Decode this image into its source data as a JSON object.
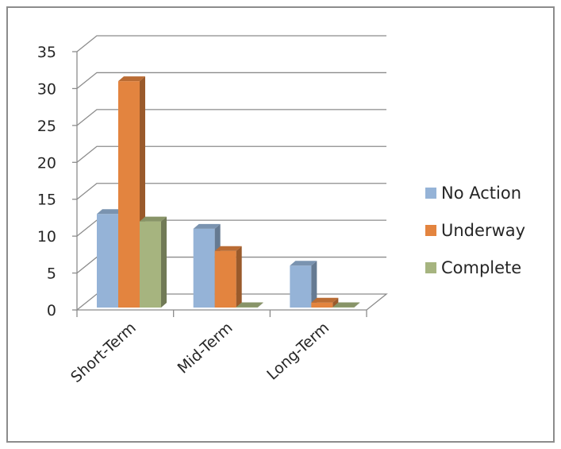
{
  "chart_data": {
    "type": "bar",
    "style": "3d-clustered-column",
    "categories": [
      "Short-Term",
      "Mid-Term",
      "Long-Term"
    ],
    "series": [
      {
        "name": "No Action",
        "values": [
          13,
          11,
          6
        ],
        "color": "#95b3d7"
      },
      {
        "name": "Underway",
        "values": [
          31,
          8,
          1
        ],
        "color": "#e3843f"
      },
      {
        "name": "Complete",
        "values": [
          12,
          0,
          0
        ],
        "color": "#a6b47f"
      }
    ],
    "yticks": [
      0,
      5,
      10,
      15,
      20,
      25,
      30,
      35
    ],
    "ylim": [
      0,
      35
    ],
    "grid": true,
    "legend_position": "right"
  }
}
